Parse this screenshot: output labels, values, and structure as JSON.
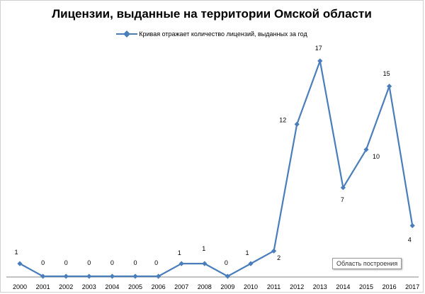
{
  "chart_data": {
    "type": "line",
    "title": "Лицензии, выданные на территории Омской области",
    "categories": [
      "2000",
      "2001",
      "2002",
      "2003",
      "2004",
      "2005",
      "2006",
      "2007",
      "2008",
      "2009",
      "2010",
      "2011",
      "2012",
      "2013",
      "2014",
      "2015",
      "2016",
      "2017"
    ],
    "series": [
      {
        "name": "Кривая отражает количество лицензий, выданных за год",
        "values": [
          1,
          0,
          0,
          0,
          0,
          0,
          0,
          1,
          1,
          0,
          1,
          2,
          12,
          17,
          7,
          10,
          15,
          4
        ],
        "color": "#4a7ebb"
      }
    ],
    "ylim": [
      0,
      17
    ],
    "grid": false,
    "legend_position": "top"
  },
  "tooltip": {
    "plot_area_label": "Область построения"
  }
}
